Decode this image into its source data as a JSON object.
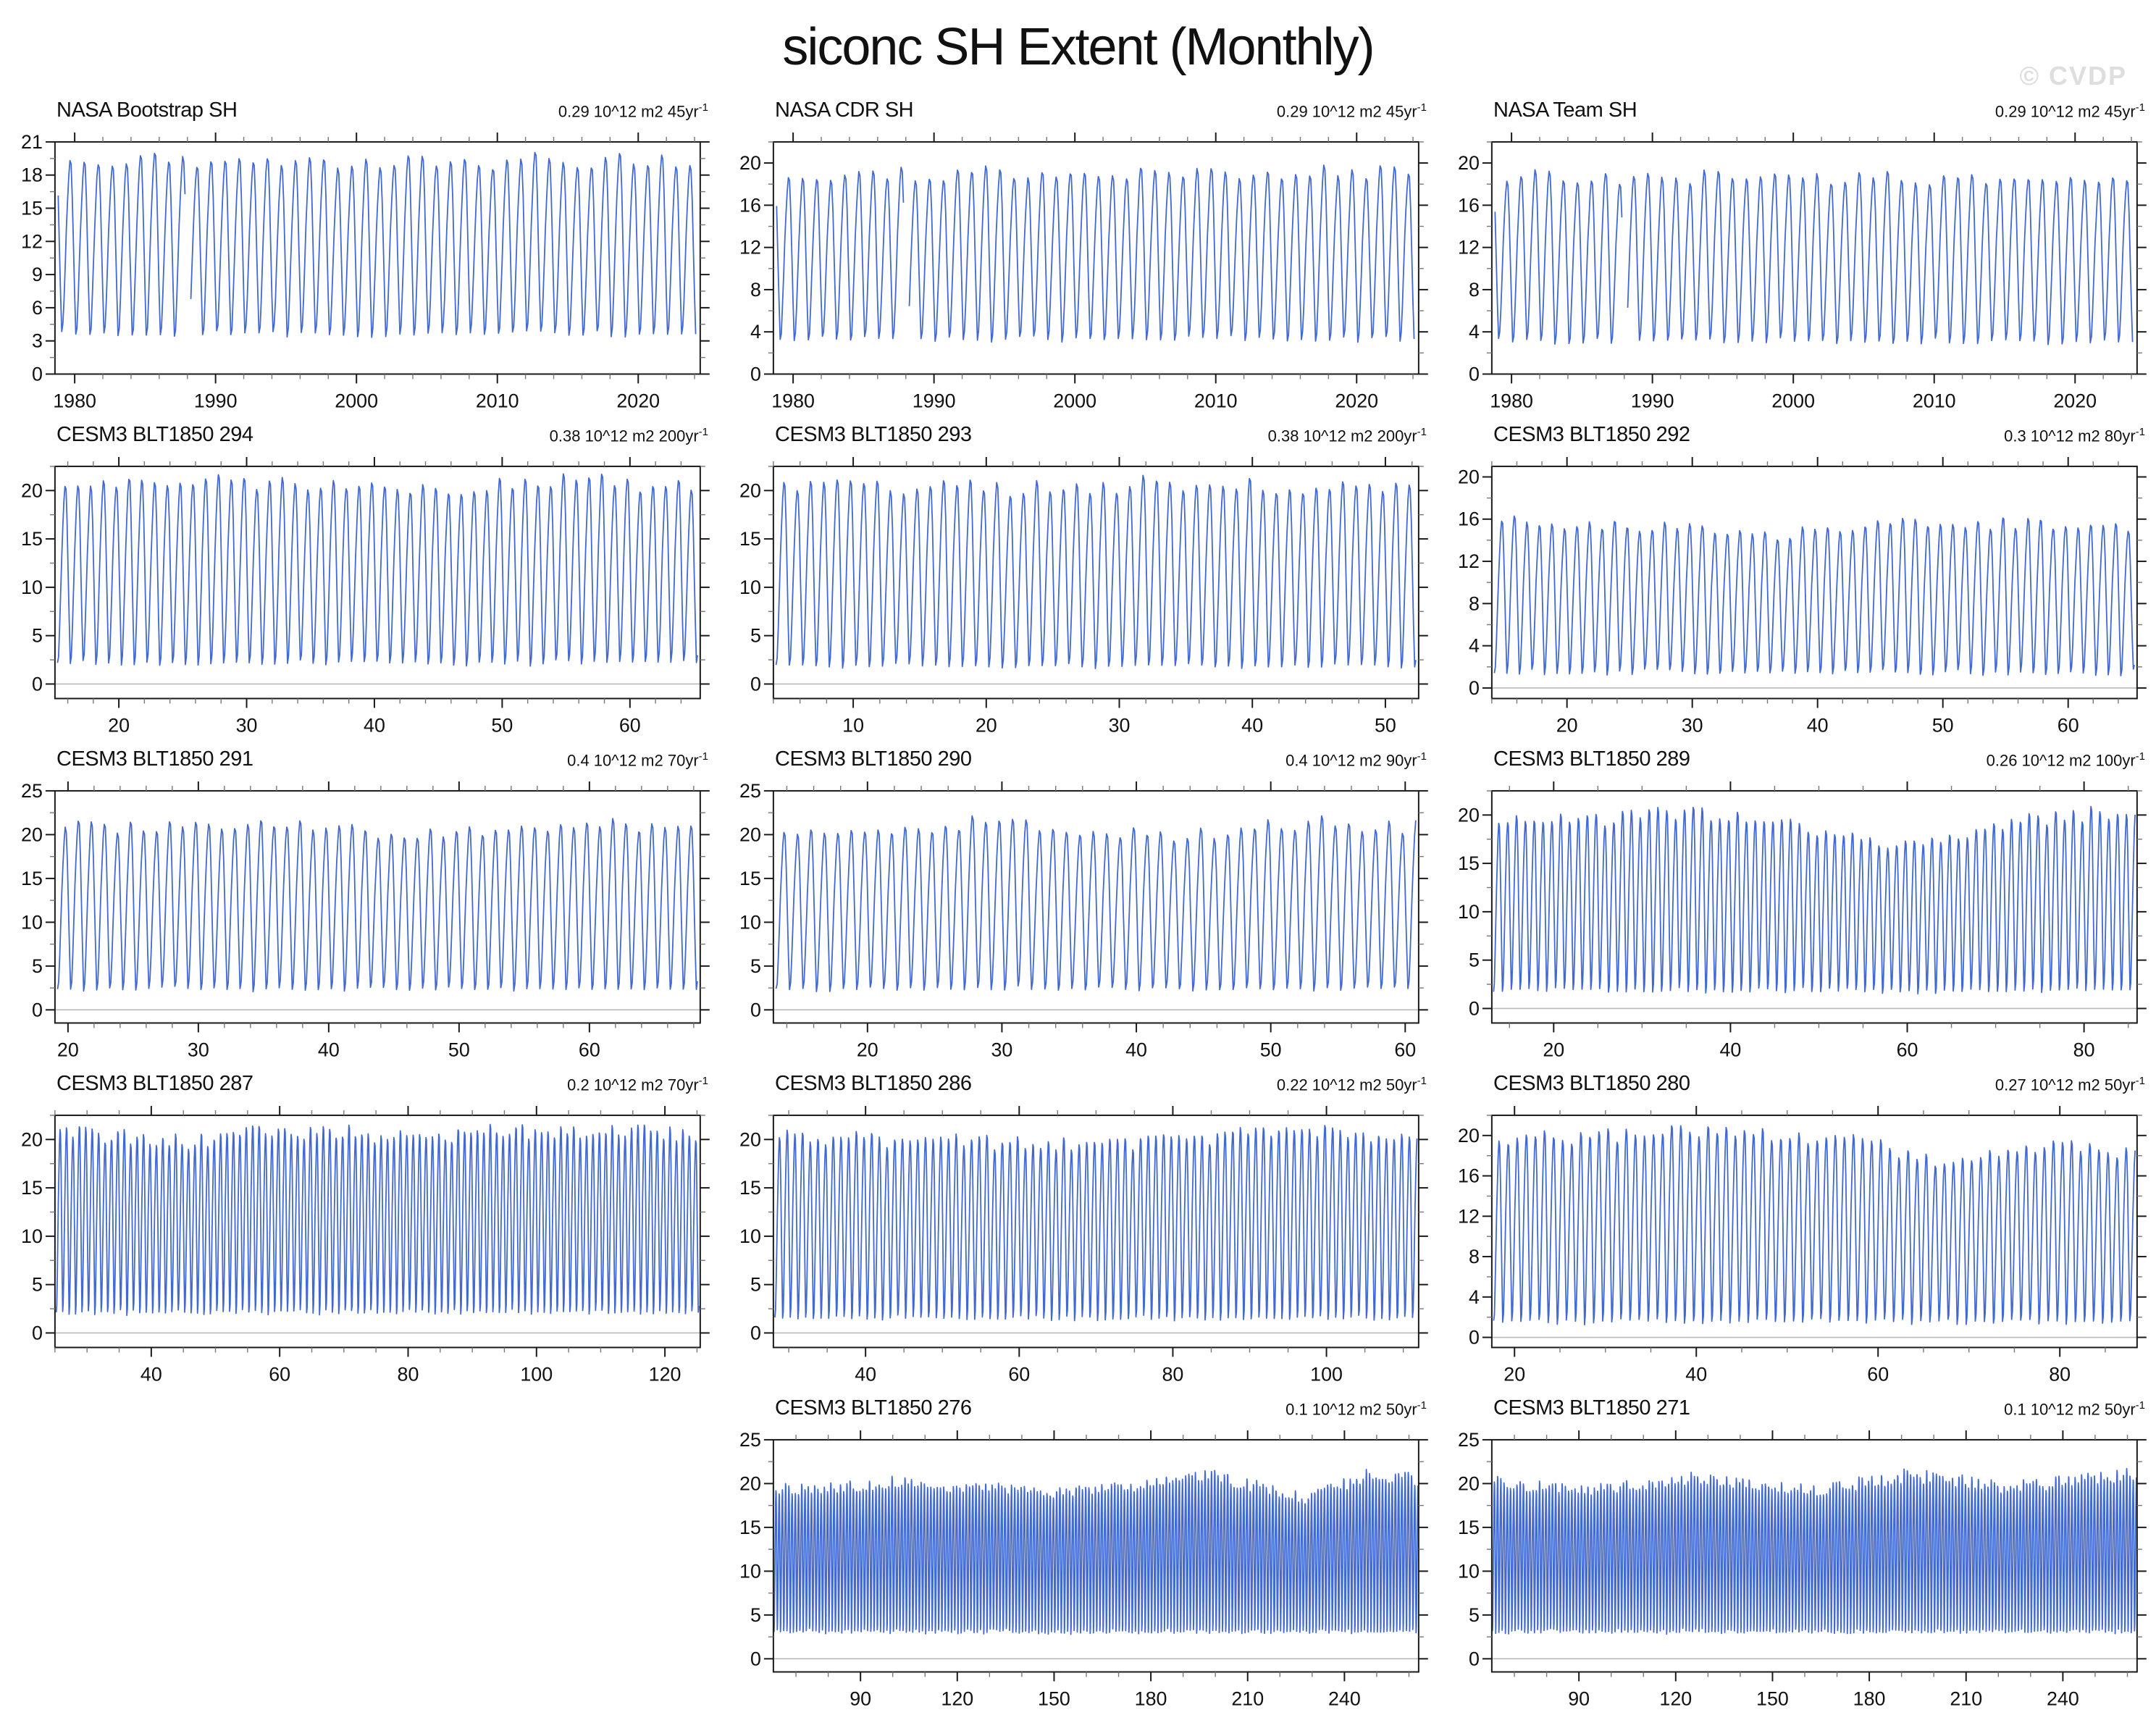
{
  "page": {
    "title": "siconc SH Extent (Monthly)",
    "watermark": "© CVDP"
  },
  "colors": {
    "line": "#4169d1",
    "axis": "#1a1a1a",
    "minor_tick": "#777777",
    "zero_line": "#b9b9b9",
    "label": "#111111",
    "watermark": "#dedede",
    "background": "#ffffff"
  },
  "chart_data": {
    "type": "line",
    "title": "siconc SH Extent (Monthly)",
    "units": "10^12 m2",
    "legend": "none",
    "grid": "off",
    "seasonal_shape": [
      0.25,
      0.02,
      0.06,
      0.22,
      0.42,
      0.62,
      0.78,
      0.92,
      1.0,
      0.98,
      0.8,
      0.52
    ],
    "panels": [
      {
        "title": "NASA Bootstrap SH",
        "trend": "0.29 10^12 m2 45yr",
        "trend_sup": "-1",
        "row": 1,
        "col": 1,
        "xlim": [
          1978.6,
          2024.4
        ],
        "xticks": [
          1980,
          1990,
          2000,
          2010,
          2020
        ],
        "x_minor_step": 2,
        "ylim": [
          0,
          21
        ],
        "yticks": [
          0,
          3,
          6,
          9,
          12,
          15,
          18,
          21
        ],
        "y_minor_step": 1.5,
        "zero_line": false,
        "series_start": 1978.83,
        "series_end": 2024.1,
        "phase0": 10,
        "seasonal_min": 3.3,
        "seasonal_max": 19.3,
        "gaps": [
          [
            1987.9,
            1988.2
          ]
        ],
        "envelope": [
          [
            0,
            1
          ],
          [
            1,
            1
          ]
        ]
      },
      {
        "title": "NASA CDR SH",
        "trend": "0.29 10^12 m2 45yr",
        "trend_sup": "-1",
        "row": 1,
        "col": 2,
        "xlim": [
          1978.6,
          2024.4
        ],
        "xticks": [
          1980,
          1990,
          2000,
          2010,
          2020
        ],
        "x_minor_step": 2,
        "ylim": [
          0,
          22
        ],
        "yticks": [
          0,
          4,
          8,
          12,
          16,
          20
        ],
        "y_minor_step": 2,
        "zero_line": false,
        "series_start": 1978.83,
        "series_end": 2024.1,
        "phase0": 10,
        "seasonal_min": 3.0,
        "seasonal_max": 19.0,
        "gaps": [
          [
            1987.9,
            1988.2
          ]
        ],
        "envelope": [
          [
            0,
            1
          ],
          [
            1,
            1
          ]
        ]
      },
      {
        "title": "NASA Team SH",
        "trend": "0.29 10^12 m2 45yr",
        "trend_sup": "-1",
        "row": 1,
        "col": 3,
        "xlim": [
          1978.6,
          2024.4
        ],
        "xticks": [
          1980,
          1990,
          2000,
          2010,
          2020
        ],
        "x_minor_step": 2,
        "ylim": [
          0,
          22
        ],
        "yticks": [
          0,
          4,
          8,
          12,
          16,
          20
        ],
        "y_minor_step": 2,
        "zero_line": false,
        "series_start": 1978.83,
        "series_end": 2024.1,
        "phase0": 10,
        "seasonal_min": 2.8,
        "seasonal_max": 18.6,
        "gaps": [
          [
            1987.9,
            1988.2
          ]
        ],
        "envelope": [
          [
            0,
            1
          ],
          [
            1,
            1
          ]
        ]
      },
      {
        "title": "CESM3 BLT1850 294",
        "trend": "0.38 10^12 m2 200yr",
        "trend_sup": "-1",
        "row": 2,
        "col": 1,
        "xlim": [
          15,
          65.5
        ],
        "xticks": [
          20,
          30,
          40,
          50,
          60
        ],
        "x_minor_step": 2,
        "ylim": [
          -1.5,
          22.5
        ],
        "yticks": [
          0,
          5,
          10,
          15,
          20
        ],
        "y_minor_step": 2.5,
        "zero_line": true,
        "seasonal_min": 1.8,
        "seasonal_max": 21.0,
        "envelope": [
          [
            0,
            0.97
          ],
          [
            0.3,
            1.0
          ],
          [
            0.6,
            0.96
          ],
          [
            0.8,
            1.0
          ],
          [
            1,
            0.97
          ]
        ]
      },
      {
        "title": "CESM3 BLT1850 293",
        "trend": "0.38 10^12 m2 200yr",
        "trend_sup": "-1",
        "row": 2,
        "col": 2,
        "xlim": [
          4,
          52.5
        ],
        "xticks": [
          10,
          20,
          30,
          40,
          50
        ],
        "x_minor_step": 2,
        "ylim": [
          -1.5,
          22.5
        ],
        "yticks": [
          0,
          5,
          10,
          15,
          20
        ],
        "y_minor_step": 2.5,
        "zero_line": true,
        "seasonal_min": 1.5,
        "seasonal_max": 20.8,
        "envelope": [
          [
            0,
            1.0
          ],
          [
            0.35,
            0.97
          ],
          [
            0.6,
            1.0
          ],
          [
            1,
            0.96
          ]
        ]
      },
      {
        "title": "CESM3 BLT1850 292",
        "trend": "0.3 10^12 m2 80yr",
        "trend_sup": "-1",
        "row": 2,
        "col": 3,
        "xlim": [
          14,
          65.5
        ],
        "xticks": [
          20,
          30,
          40,
          50,
          60
        ],
        "x_minor_step": 2,
        "ylim": [
          -1,
          21
        ],
        "yticks": [
          0,
          4,
          8,
          12,
          16,
          20
        ],
        "y_minor_step": 2,
        "zero_line": true,
        "seasonal_min": 1.2,
        "seasonal_max": 15.8,
        "envelope": [
          [
            0,
            1.0
          ],
          [
            0.45,
            0.92
          ],
          [
            0.7,
            1.0
          ],
          [
            1,
            0.97
          ]
        ]
      },
      {
        "title": "CESM3 BLT1850 291",
        "trend": "0.4 10^12 m2 70yr",
        "trend_sup": "-1",
        "row": 3,
        "col": 1,
        "xlim": [
          19,
          68.5
        ],
        "xticks": [
          20,
          30,
          40,
          50,
          60
        ],
        "x_minor_step": 2,
        "ylim": [
          -1.5,
          25
        ],
        "yticks": [
          0,
          5,
          10,
          15,
          20,
          25
        ],
        "y_minor_step": 2.5,
        "zero_line": true,
        "seasonal_min": 2.0,
        "seasonal_max": 21.3,
        "envelope": [
          [
            0,
            0.97
          ],
          [
            0.35,
            1.0
          ],
          [
            0.55,
            0.93
          ],
          [
            0.8,
            1.0
          ],
          [
            1,
            0.96
          ]
        ]
      },
      {
        "title": "CESM3 BLT1850 290",
        "trend": "0.4 10^12 m2 90yr",
        "trend_sup": "-1",
        "row": 3,
        "col": 2,
        "xlim": [
          13,
          61
        ],
        "xticks": [
          20,
          30,
          40,
          50,
          60
        ],
        "x_minor_step": 2,
        "ylim": [
          -1.5,
          25
        ],
        "yticks": [
          0,
          5,
          10,
          15,
          20,
          25
        ],
        "y_minor_step": 2.5,
        "zero_line": true,
        "seasonal_min": 2.0,
        "seasonal_max": 21.3,
        "envelope": [
          [
            0,
            0.94
          ],
          [
            0.3,
            1.0
          ],
          [
            0.62,
            0.92
          ],
          [
            0.85,
            1.0
          ],
          [
            1,
            0.97
          ]
        ]
      },
      {
        "title": "CESM3 BLT1850 289",
        "trend": "0.26 10^12 m2 100yr",
        "trend_sup": "-1",
        "row": 3,
        "col": 3,
        "xlim": [
          13,
          86
        ],
        "xticks": [
          20,
          40,
          60,
          80
        ],
        "x_minor_step": 5,
        "ylim": [
          -1.5,
          22.5
        ],
        "yticks": [
          0,
          5,
          10,
          15,
          20
        ],
        "y_minor_step": 2.5,
        "zero_line": true,
        "seasonal_min": 1.5,
        "seasonal_max": 20.3,
        "envelope": [
          [
            0,
            0.93
          ],
          [
            0.3,
            1.0
          ],
          [
            0.45,
            0.97
          ],
          [
            0.62,
            0.8
          ],
          [
            0.8,
            0.95
          ],
          [
            1,
            1.0
          ]
        ]
      },
      {
        "title": "CESM3 BLT1850 287",
        "trend": "0.2 10^12 m2 70yr",
        "trend_sup": "-1",
        "row": 4,
        "col": 1,
        "xlim": [
          25,
          125.5
        ],
        "xticks": [
          40,
          60,
          80,
          100,
          120
        ],
        "x_minor_step": 5,
        "ylim": [
          -1.5,
          22.5
        ],
        "yticks": [
          0,
          5,
          10,
          15,
          20
        ],
        "y_minor_step": 2.5,
        "zero_line": true,
        "seasonal_min": 1.8,
        "seasonal_max": 21.0,
        "envelope": [
          [
            0,
            1.0
          ],
          [
            0.2,
            0.93
          ],
          [
            0.35,
            1.0
          ],
          [
            0.55,
            0.96
          ],
          [
            0.75,
            1.0
          ],
          [
            1,
            0.98
          ]
        ]
      },
      {
        "title": "CESM3 BLT1850 286",
        "trend": "0.22 10^12 m2 50yr",
        "trend_sup": "-1",
        "row": 4,
        "col": 2,
        "xlim": [
          28,
          112
        ],
        "xticks": [
          40,
          60,
          80,
          100
        ],
        "x_minor_step": 5,
        "ylim": [
          -1.5,
          22.5
        ],
        "yticks": [
          0,
          5,
          10,
          15,
          20
        ],
        "y_minor_step": 2.5,
        "zero_line": true,
        "seasonal_min": 1.2,
        "seasonal_max": 20.8,
        "envelope": [
          [
            0,
            0.97
          ],
          [
            0.5,
            0.93
          ],
          [
            0.85,
            1.0
          ],
          [
            1,
            0.95
          ]
        ]
      },
      {
        "title": "CESM3 BLT1850 280",
        "trend": "0.27 10^12 m2 50yr",
        "trend_sup": "-1",
        "row": 4,
        "col": 3,
        "xlim": [
          17.5,
          88.5
        ],
        "xticks": [
          20,
          40,
          60,
          80
        ],
        "x_minor_step": 5,
        "ylim": [
          -1,
          22
        ],
        "yticks": [
          0,
          4,
          8,
          12,
          16,
          20
        ],
        "y_minor_step": 2,
        "zero_line": true,
        "seasonal_min": 1.2,
        "seasonal_max": 20.3,
        "envelope": [
          [
            0,
            0.95
          ],
          [
            0.3,
            1.0
          ],
          [
            0.55,
            0.97
          ],
          [
            0.72,
            0.82
          ],
          [
            0.88,
            0.95
          ],
          [
            1,
            0.9
          ]
        ]
      },
      {
        "title": "CESM3 BLT1850 276",
        "trend": "0.1 10^12 m2 50yr",
        "trend_sup": "-1",
        "row": 5,
        "col": 2,
        "xlim": [
          63,
          263
        ],
        "xticks": [
          90,
          120,
          150,
          180,
          210,
          240
        ],
        "x_minor_step": 10,
        "ylim": [
          -1.5,
          25
        ],
        "yticks": [
          0,
          5,
          10,
          15,
          20,
          25
        ],
        "y_minor_step": 2.5,
        "zero_line": true,
        "seasonal_min": 2.8,
        "seasonal_max": 21.0,
        "envelope": [
          [
            0,
            0.9
          ],
          [
            0.2,
            0.95
          ],
          [
            0.42,
            0.88
          ],
          [
            0.55,
            0.92
          ],
          [
            0.68,
            1.0
          ],
          [
            0.82,
            0.85
          ],
          [
            0.93,
            1.0
          ],
          [
            1,
            0.97
          ]
        ]
      },
      {
        "title": "CESM3 BLT1850 271",
        "trend": "0.1 10^12 m2 50yr",
        "trend_sup": "-1",
        "row": 5,
        "col": 3,
        "xlim": [
          63,
          263
        ],
        "xticks": [
          90,
          120,
          150,
          180,
          210,
          240
        ],
        "x_minor_step": 10,
        "ylim": [
          -1.5,
          25
        ],
        "yticks": [
          0,
          5,
          10,
          15,
          20,
          25
        ],
        "y_minor_step": 2.5,
        "zero_line": true,
        "seasonal_min": 2.8,
        "seasonal_max": 21.0,
        "envelope": [
          [
            0,
            0.95
          ],
          [
            0.15,
            0.9
          ],
          [
            0.3,
            0.97
          ],
          [
            0.5,
            0.9
          ],
          [
            0.65,
            1.0
          ],
          [
            0.8,
            0.92
          ],
          [
            1,
            1.0
          ]
        ]
      }
    ]
  }
}
